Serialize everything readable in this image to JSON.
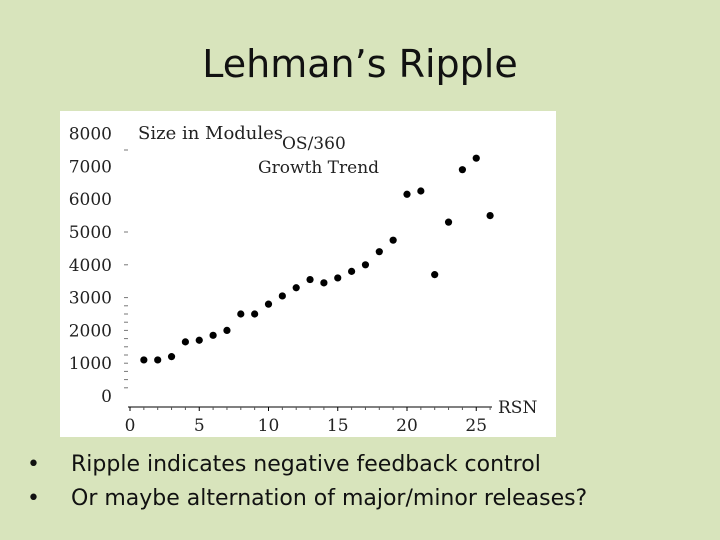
{
  "slide": {
    "title": "Lehman’s Ripple",
    "bullets": [
      "Ripple indicates negative feedback control",
      "Or maybe alternation of major/minor releases?"
    ],
    "bullet_symbol": "•"
  },
  "chart_data": {
    "type": "scatter",
    "title": "OS/360",
    "subtitle": "Growth Trend",
    "ylabel": "Size in Modules",
    "xlabel": "RSN",
    "xlim": [
      0,
      25
    ],
    "ylim": [
      0,
      8000
    ],
    "xticks": [
      0,
      5,
      10,
      15,
      20,
      25
    ],
    "yticks": [
      0,
      1000,
      2000,
      3000,
      4000,
      5000,
      6000,
      7000,
      8000
    ],
    "grid": false,
    "color": "#000000",
    "points": [
      {
        "x": 1,
        "y": 1100
      },
      {
        "x": 2,
        "y": 1100
      },
      {
        "x": 3,
        "y": 1200
      },
      {
        "x": 4,
        "y": 1650
      },
      {
        "x": 5,
        "y": 1700
      },
      {
        "x": 6,
        "y": 1850
      },
      {
        "x": 7,
        "y": 2000
      },
      {
        "x": 8,
        "y": 2500
      },
      {
        "x": 9,
        "y": 2500
      },
      {
        "x": 10,
        "y": 2800
      },
      {
        "x": 11,
        "y": 3050
      },
      {
        "x": 12,
        "y": 3300
      },
      {
        "x": 13,
        "y": 3550
      },
      {
        "x": 14,
        "y": 3450
      },
      {
        "x": 15,
        "y": 3600
      },
      {
        "x": 16,
        "y": 3800
      },
      {
        "x": 17,
        "y": 4000
      },
      {
        "x": 18,
        "y": 4400
      },
      {
        "x": 19,
        "y": 4750
      },
      {
        "x": 20,
        "y": 6150
      },
      {
        "x": 21,
        "y": 6250
      },
      {
        "x": 22,
        "y": 3700
      },
      {
        "x": 23,
        "y": 5300
      },
      {
        "x": 24,
        "y": 6900
      },
      {
        "x": 25,
        "y": 7250
      },
      {
        "x": 26,
        "y": 5500
      }
    ]
  }
}
